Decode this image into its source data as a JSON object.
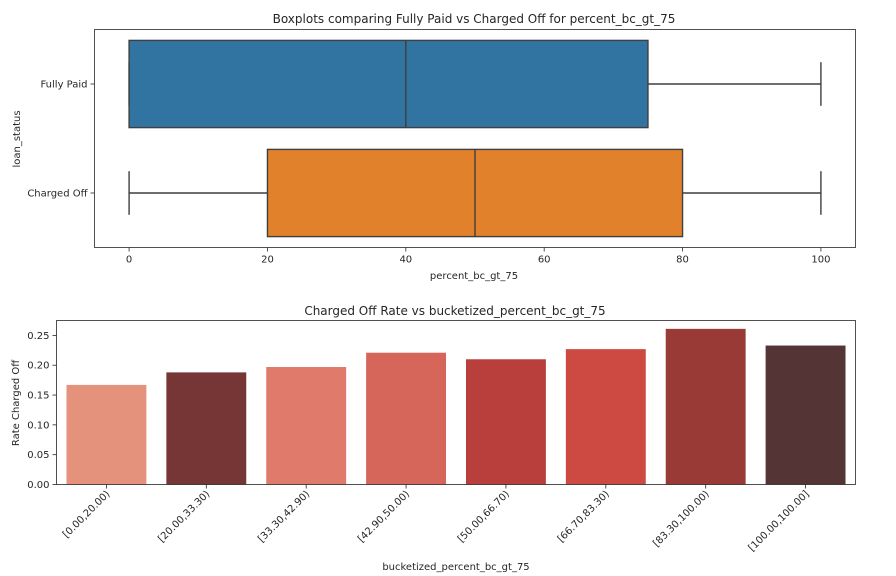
{
  "chart_data": [
    {
      "type": "box",
      "orientation": "horizontal",
      "title": "Boxplots comparing Fully Paid vs Charged Off for percent_bc_gt_75",
      "xlabel": "percent_bc_gt_75",
      "ylabel": "loan_status",
      "xlim": [
        -5,
        105
      ],
      "xticks": [
        0,
        20,
        40,
        60,
        80,
        100
      ],
      "grid": false,
      "series": [
        {
          "name": "Fully Paid",
          "color": "#3274a1",
          "whisker_low": 0,
          "q1": 0,
          "median": 40,
          "q3": 75,
          "whisker_high": 100
        },
        {
          "name": "Charged Off",
          "color": "#e1812c",
          "whisker_low": 0,
          "q1": 20,
          "median": 50,
          "q3": 80,
          "whisker_high": 100
        }
      ]
    },
    {
      "type": "bar",
      "title": "Charged Off Rate vs bucketized_percent_bc_gt_75",
      "xlabel": "bucketized_percent_bc_gt_75",
      "ylabel": "Rate Charged Off",
      "ylim": [
        0,
        0.275
      ],
      "yticks": [
        "0.00",
        "0.05",
        "0.10",
        "0.15",
        "0.20",
        "0.25"
      ],
      "grid": false,
      "categories": [
        "[0.00,20.00)",
        "[20.00,33.30)",
        "[33.30,42.90)",
        "[42.90,50.00)",
        "[50.00,66.70)",
        "[66.70,83.30)",
        "[83.30,100.00)",
        "[100.00,100.00]"
      ],
      "values": [
        0.167,
        0.188,
        0.197,
        0.221,
        0.21,
        0.227,
        0.261,
        0.233
      ],
      "colors": [
        "#e5927c",
        "#763636",
        "#e07a6a",
        "#d6655a",
        "#b83f3b",
        "#cd4a42",
        "#9a3a37",
        "#553436"
      ]
    }
  ]
}
